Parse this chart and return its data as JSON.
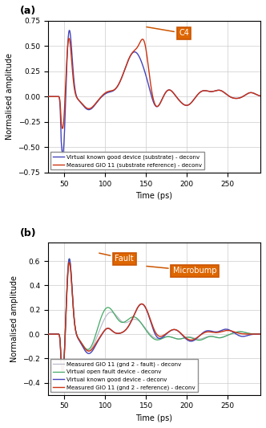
{
  "fig_width": 3.32,
  "fig_height": 5.33,
  "dpi": 100,
  "background_color": "#ffffff",
  "panel_a": {
    "label": "(a)",
    "xlim": [
      30,
      290
    ],
    "ylim": [
      -0.75,
      0.75
    ],
    "xticks": [
      50,
      100,
      150,
      200,
      250
    ],
    "yticks": [
      -0.75,
      -0.5,
      -0.25,
      0,
      0.25,
      0.5,
      0.75
    ],
    "xlabel": "Time (ps)",
    "ylabel": "Normalised amplitude",
    "annotation": "C4",
    "lines": {
      "measured": {
        "color": "#cc3311",
        "lw": 1.0,
        "label": "Measured GIO 11 (substrate reference) - deconv"
      },
      "virtual": {
        "color": "#4444bb",
        "lw": 1.0,
        "label": "Virtual known good device (substrate) - deconv"
      }
    }
  },
  "panel_b": {
    "label": "(b)",
    "xlim": [
      30,
      290
    ],
    "ylim": [
      -0.5,
      0.75
    ],
    "xticks": [
      50,
      100,
      150,
      200,
      250
    ],
    "yticks": [
      -0.4,
      -0.2,
      0,
      0.2,
      0.4,
      0.6
    ],
    "xlabel": "Time (ps)",
    "ylabel": "Normalised amplitude",
    "annotation_fault": "Fault",
    "annotation_microbump": "Microbump",
    "lines": {
      "measured_ref": {
        "color": "#cc3311",
        "lw": 1.0,
        "label": "Measured GIO 11 (gnd 2 - reference) - deconv"
      },
      "virtual_good": {
        "color": "#4444bb",
        "lw": 1.0,
        "label": "Virtual known good device - deconv"
      },
      "measured_fault": {
        "color": "#bbbbcc",
        "lw": 0.9,
        "label": "Measured GIO 11 (gnd 2 - fault) - deconv"
      },
      "virtual_fault": {
        "color": "#44aa66",
        "lw": 0.9,
        "label": "Virtual open fault device - deconv"
      }
    }
  },
  "grid_color": "#cccccc",
  "grid_lw": 0.5,
  "box_color": "#cc5500",
  "box_fc": "#dd6600",
  "legend_fontsize": 5.0,
  "label_fontsize": 7,
  "tick_fontsize": 6.5,
  "panel_label_fontsize": 9
}
